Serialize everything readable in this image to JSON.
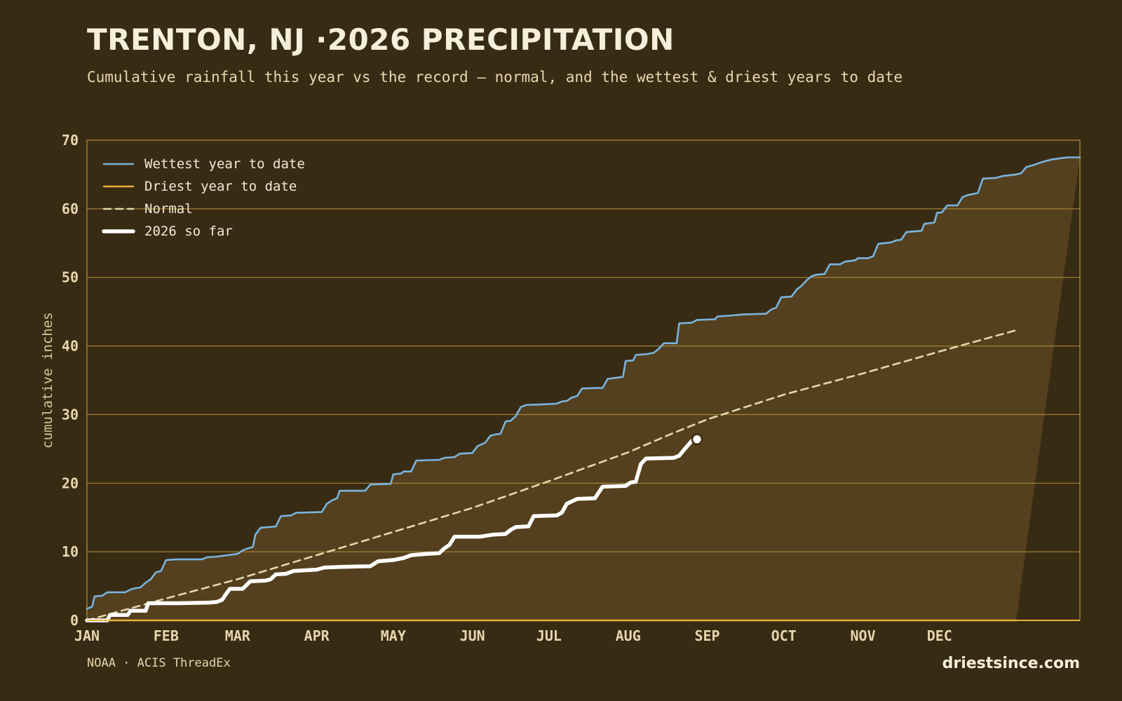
{
  "title": "TRENTON, NJ ·2026 PRECIPITATION",
  "subtitle": "Cumulative rainfall this year vs the record — normal, and the wettest & driest years to date",
  "source": "NOAA · ACIS ThreadEx",
  "brand": "driestsince.com",
  "colors": {
    "background": "#382b14",
    "band_fill": "#54401e",
    "grid": "#b8923a",
    "wettest": "#79b4de",
    "driest": "#e8b23a",
    "normal": "#e6d7ae",
    "current": "#ffffff"
  },
  "chart_data": {
    "type": "line",
    "ylabel": "cumulative inches",
    "ylim": [
      0,
      70
    ],
    "yticks": [
      0,
      10,
      20,
      30,
      40,
      50,
      60,
      70
    ],
    "xlim_day_of_year": [
      1,
      365
    ],
    "x_unit": "day of year",
    "months": [
      {
        "label": "JAN",
        "day": 1
      },
      {
        "label": "FEB",
        "day": 32
      },
      {
        "label": "MAR",
        "day": 60
      },
      {
        "label": "APR",
        "day": 91
      },
      {
        "label": "MAY",
        "day": 121
      },
      {
        "label": "JUN",
        "day": 152
      },
      {
        "label": "JUL",
        "day": 182
      },
      {
        "label": "AUG",
        "day": 213
      },
      {
        "label": "SEP",
        "day": 244
      },
      {
        "label": "OCT",
        "day": 274
      },
      {
        "label": "NOV",
        "day": 305
      },
      {
        "label": "DEC",
        "day": 335
      }
    ],
    "legend_position": "top-left",
    "grid": "horizontal",
    "series": [
      {
        "name": "Wettest year to date",
        "style": "solid",
        "points": [
          [
            1,
            1.7
          ],
          [
            3,
            2.0
          ],
          [
            4,
            3.5
          ],
          [
            7,
            3.6
          ],
          [
            9,
            4.1
          ],
          [
            16,
            4.1
          ],
          [
            18,
            4.5
          ],
          [
            20,
            4.7
          ],
          [
            22,
            4.8
          ],
          [
            24,
            5.5
          ],
          [
            26,
            6.0
          ],
          [
            28,
            7.0
          ],
          [
            30,
            7.2
          ],
          [
            32,
            8.8
          ],
          [
            36,
            8.9
          ],
          [
            46,
            8.9
          ],
          [
            48,
            9.2
          ],
          [
            52,
            9.3
          ],
          [
            56,
            9.5
          ],
          [
            60,
            9.7
          ],
          [
            62,
            10.2
          ],
          [
            64,
            10.5
          ],
          [
            66,
            10.7
          ],
          [
            67,
            12.5
          ],
          [
            69,
            13.5
          ],
          [
            75,
            13.7
          ],
          [
            77,
            15.2
          ],
          [
            81,
            15.3
          ],
          [
            83,
            15.7
          ],
          [
            93,
            15.8
          ],
          [
            95,
            17.0
          ],
          [
            97,
            17.5
          ],
          [
            99,
            17.8
          ],
          [
            100,
            18.9
          ],
          [
            110,
            18.9
          ],
          [
            112,
            19.8
          ],
          [
            120,
            19.9
          ],
          [
            121,
            21.3
          ],
          [
            124,
            21.4
          ],
          [
            125,
            21.7
          ],
          [
            128,
            21.7
          ],
          [
            130,
            23.3
          ],
          [
            139,
            23.4
          ],
          [
            141,
            23.7
          ],
          [
            145,
            23.8
          ],
          [
            147,
            24.3
          ],
          [
            152,
            24.4
          ],
          [
            154,
            25.4
          ],
          [
            157,
            25.9
          ],
          [
            159,
            26.9
          ],
          [
            161,
            27.1
          ],
          [
            163,
            27.2
          ],
          [
            165,
            29.0
          ],
          [
            167,
            29.1
          ],
          [
            169,
            29.8
          ],
          [
            171,
            31.1
          ],
          [
            173,
            31.4
          ],
          [
            180,
            31.5
          ],
          [
            185,
            31.6
          ],
          [
            187,
            31.9
          ],
          [
            189,
            32.0
          ],
          [
            191,
            32.5
          ],
          [
            193,
            32.7
          ],
          [
            195,
            33.8
          ],
          [
            203,
            33.9
          ],
          [
            205,
            35.2
          ],
          [
            209,
            35.4
          ],
          [
            211,
            35.5
          ],
          [
            212,
            37.8
          ],
          [
            215,
            37.9
          ],
          [
            216,
            38.7
          ],
          [
            220,
            38.8
          ],
          [
            223,
            39.0
          ],
          [
            225,
            39.6
          ],
          [
            227,
            40.4
          ],
          [
            232,
            40.4
          ],
          [
            233,
            43.3
          ],
          [
            238,
            43.4
          ],
          [
            240,
            43.8
          ],
          [
            247,
            43.9
          ],
          [
            248,
            44.3
          ],
          [
            252,
            44.4
          ],
          [
            258,
            44.6
          ],
          [
            267,
            44.7
          ],
          [
            269,
            45.3
          ],
          [
            271,
            45.6
          ],
          [
            273,
            47.1
          ],
          [
            277,
            47.2
          ],
          [
            279,
            48.2
          ],
          [
            281,
            48.8
          ],
          [
            283,
            49.6
          ],
          [
            285,
            50.2
          ],
          [
            287,
            50.4
          ],
          [
            290,
            50.5
          ],
          [
            292,
            51.9
          ],
          [
            296,
            51.9
          ],
          [
            298,
            52.3
          ],
          [
            302,
            52.5
          ],
          [
            303,
            52.8
          ],
          [
            307,
            52.8
          ],
          [
            309,
            53.1
          ],
          [
            311,
            54.9
          ],
          [
            316,
            55.1
          ],
          [
            318,
            55.4
          ],
          [
            320,
            55.5
          ],
          [
            322,
            56.6
          ],
          [
            328,
            56.8
          ],
          [
            329,
            57.8
          ],
          [
            333,
            58.0
          ],
          [
            334,
            59.4
          ],
          [
            336,
            59.5
          ],
          [
            338,
            60.5
          ],
          [
            342,
            60.5
          ],
          [
            344,
            61.7
          ],
          [
            346,
            62.0
          ],
          [
            350,
            62.3
          ],
          [
            352,
            64.4
          ],
          [
            357,
            64.5
          ],
          [
            360,
            64.8
          ],
          [
            365,
            65.0
          ],
          [
            367,
            65.2
          ],
          [
            369,
            66.1
          ],
          [
            372,
            66.4
          ],
          [
            375,
            66.8
          ],
          [
            379,
            67.2
          ],
          [
            385,
            67.5
          ],
          [
            390,
            67.5
          ]
        ]
      },
      {
        "name": "Driest year to date",
        "style": "solid",
        "points": [
          [
            1,
            0.0
          ],
          [
            365,
            0.0
          ]
        ]
      },
      {
        "name": "Normal",
        "style": "dashed",
        "points": [
          [
            1,
            0.0
          ],
          [
            32,
            3.2
          ],
          [
            60,
            6.0
          ],
          [
            91,
            9.5
          ],
          [
            121,
            12.9
          ],
          [
            152,
            16.4
          ],
          [
            182,
            20.3
          ],
          [
            213,
            24.5
          ],
          [
            230,
            27.2
          ],
          [
            244,
            29.3
          ],
          [
            274,
            32.9
          ],
          [
            305,
            36.0
          ],
          [
            335,
            39.2
          ],
          [
            365,
            42.3
          ]
        ]
      },
      {
        "name": "2026 so far",
        "style": "thick",
        "points": [
          [
            1,
            0.0
          ],
          [
            9,
            0.0
          ],
          [
            10,
            0.8
          ],
          [
            17,
            0.8
          ],
          [
            18,
            1.4
          ],
          [
            24,
            1.4
          ],
          [
            25,
            2.5
          ],
          [
            37,
            2.5
          ],
          [
            49,
            2.6
          ],
          [
            52,
            2.7
          ],
          [
            54,
            3.0
          ],
          [
            55,
            3.6
          ],
          [
            57,
            4.6
          ],
          [
            62,
            4.6
          ],
          [
            65,
            5.7
          ],
          [
            71,
            5.8
          ],
          [
            73,
            6.0
          ],
          [
            75,
            6.7
          ],
          [
            79,
            6.8
          ],
          [
            82,
            7.2
          ],
          [
            86,
            7.3
          ],
          [
            91,
            7.4
          ],
          [
            94,
            7.7
          ],
          [
            100,
            7.8
          ],
          [
            112,
            7.9
          ],
          [
            115,
            8.6
          ],
          [
            121,
            8.8
          ],
          [
            125,
            9.1
          ],
          [
            128,
            9.5
          ],
          [
            134,
            9.7
          ],
          [
            139,
            9.8
          ],
          [
            141,
            10.5
          ],
          [
            143,
            11.0
          ],
          [
            145,
            12.2
          ],
          [
            155,
            12.2
          ],
          [
            160,
            12.5
          ],
          [
            165,
            12.6
          ],
          [
            167,
            13.2
          ],
          [
            169,
            13.6
          ],
          [
            174,
            13.7
          ],
          [
            176,
            15.2
          ],
          [
            185,
            15.3
          ],
          [
            187,
            15.7
          ],
          [
            189,
            17.0
          ],
          [
            193,
            17.7
          ],
          [
            200,
            17.8
          ],
          [
            203,
            19.5
          ],
          [
            212,
            19.6
          ],
          [
            214,
            20.1
          ],
          [
            216,
            20.2
          ],
          [
            218,
            22.8
          ],
          [
            220,
            23.6
          ],
          [
            231,
            23.7
          ],
          [
            233,
            24.0
          ],
          [
            235,
            24.9
          ],
          [
            238,
            26.2
          ]
        ]
      }
    ],
    "current_marker": {
      "day": 240,
      "value": 26.4
    }
  }
}
